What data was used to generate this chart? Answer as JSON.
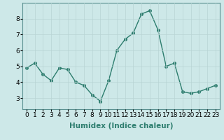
{
  "x": [
    0,
    1,
    2,
    3,
    4,
    5,
    6,
    7,
    8,
    9,
    10,
    11,
    12,
    13,
    14,
    15,
    16,
    17,
    18,
    19,
    20,
    21,
    22,
    23
  ],
  "y": [
    4.9,
    5.2,
    4.5,
    4.1,
    4.9,
    4.8,
    4.0,
    3.8,
    3.2,
    2.8,
    4.1,
    6.0,
    6.7,
    7.1,
    8.3,
    8.5,
    7.3,
    5.0,
    5.2,
    3.4,
    3.3,
    3.4,
    3.6,
    3.8
  ],
  "line_color": "#2d7d6e",
  "marker": "o",
  "markersize": 2.5,
  "linewidth": 1.0,
  "xlabel": "Humidex (Indice chaleur)",
  "xlabel_fontsize": 7.5,
  "xlim": [
    -0.5,
    23.5
  ],
  "ylim": [
    2.3,
    9.0
  ],
  "yticks": [
    3,
    4,
    5,
    6,
    7,
    8
  ],
  "xtick_labels": [
    "0",
    "1",
    "2",
    "3",
    "4",
    "5",
    "6",
    "7",
    "8",
    "9",
    "10",
    "11",
    "12",
    "13",
    "14",
    "15",
    "16",
    "17",
    "18",
    "19",
    "20",
    "21",
    "22",
    "23"
  ],
  "background_color": "#cde8e8",
  "grid_color": "#b8d4d4",
  "tick_fontsize": 6.5,
  "fig_bg": "#cde8e8",
  "spine_color": "#5a9090"
}
